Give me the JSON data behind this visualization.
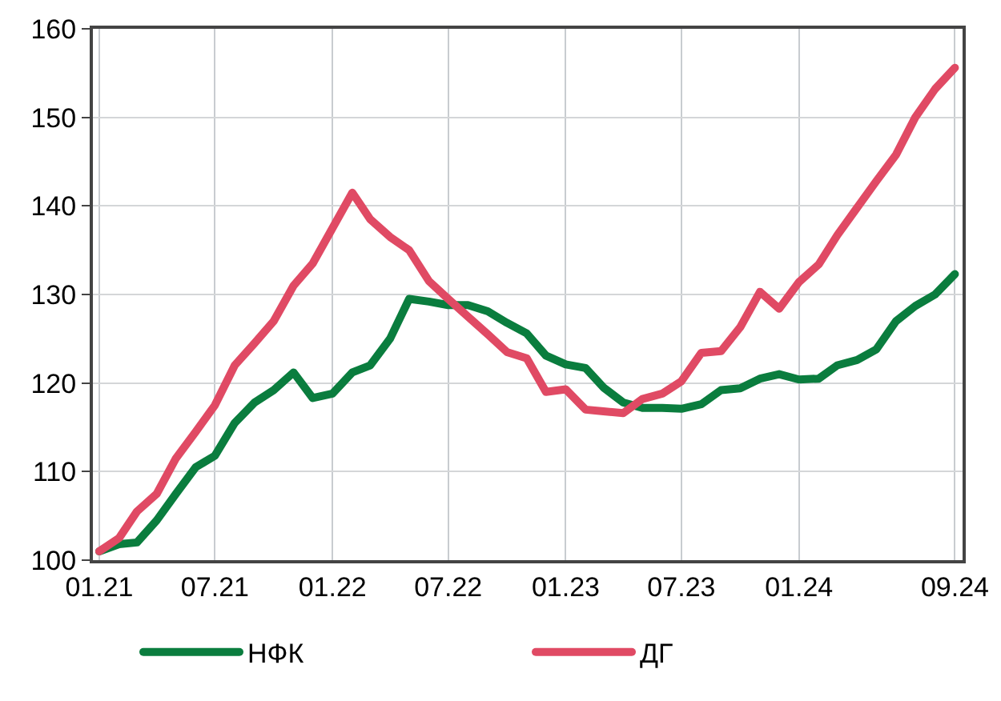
{
  "chart_data": {
    "type": "line",
    "x": [
      "2021-01",
      "2021-02",
      "2021-03",
      "2021-04",
      "2021-05",
      "2021-06",
      "2021-07",
      "2021-08",
      "2021-09",
      "2021-10",
      "2021-11",
      "2021-12",
      "2022-01",
      "2022-02",
      "2022-03",
      "2022-04",
      "2022-05",
      "2022-06",
      "2022-07",
      "2022-08",
      "2022-09",
      "2022-10",
      "2022-11",
      "2022-12",
      "2023-01",
      "2023-02",
      "2023-03",
      "2023-04",
      "2023-05",
      "2023-06",
      "2023-07",
      "2023-08",
      "2023-09",
      "2023-10",
      "2023-11",
      "2023-12",
      "2024-01",
      "2024-02",
      "2024-03",
      "2024-04",
      "2024-05",
      "2024-06",
      "2024-07",
      "2024-08",
      "2024-09"
    ],
    "series": [
      {
        "name": "НФК",
        "color": "#0a7d3e",
        "values": [
          101,
          101.8,
          102,
          104.5,
          107.5,
          110.5,
          111.8,
          115.5,
          117.8,
          119.2,
          121.2,
          118.3,
          118.8,
          121.2,
          122,
          125,
          129.5,
          129.2,
          128.8,
          128.8,
          128.1,
          126.8,
          125.6,
          123.1,
          122.1,
          121.7,
          119.5,
          117.8,
          117.2,
          117.2,
          117.1,
          117.6,
          119.2,
          119.4,
          120.5,
          121,
          120.4,
          120.5,
          122,
          122.6,
          123.8,
          127,
          128.7,
          130,
          132.3
        ]
      },
      {
        "name": "ДГ",
        "color": "#e04a64",
        "values": [
          101,
          102.5,
          105.5,
          107.5,
          111.5,
          114.5,
          117.5,
          122,
          124.5,
          127,
          131,
          133.5,
          137.5,
          141.5,
          138.5,
          136.5,
          135,
          131.5,
          129.5,
          127.5,
          125.5,
          123.5,
          122.8,
          119,
          119.3,
          117,
          116.8,
          116.6,
          118.2,
          118.8,
          120.2,
          123.4,
          123.6,
          126.3,
          130.3,
          128.4,
          131.4,
          133.4,
          136.7,
          139.8,
          142.8,
          145.8,
          150,
          153.2,
          155.6
        ]
      }
    ],
    "xlim": [
      "2020-12-22",
      "2024-09-13"
    ],
    "xticks": [
      {
        "value": "2021-01",
        "label": "01.21"
      },
      {
        "value": "2021-07",
        "label": "07.21"
      },
      {
        "value": "2022-01",
        "label": "01.22"
      },
      {
        "value": "2022-07",
        "label": "07.22"
      },
      {
        "value": "2023-01",
        "label": "01.23"
      },
      {
        "value": "2023-07",
        "label": "07.23"
      },
      {
        "value": "2024-01",
        "label": "01.24"
      },
      {
        "value": "2024-09",
        "label": "09.24"
      }
    ],
    "ylim": [
      100,
      160
    ],
    "yticks": [
      100,
      110,
      120,
      130,
      140,
      150,
      160
    ],
    "grid": true,
    "legend": "bottom",
    "marker": "none",
    "line_style": "solid"
  }
}
